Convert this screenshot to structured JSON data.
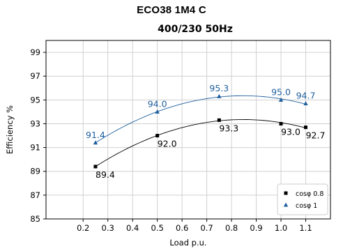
{
  "chart_data": {
    "type": "scatter",
    "title": "ECO38 1M4 C",
    "subtitle": "400/230 50Hz",
    "xlabel": "Load p.u.",
    "ylabel": "Efficiency %",
    "xlim": [
      0.05,
      1.2
    ],
    "ylim": [
      85,
      100
    ],
    "xticks": [
      0.2,
      0.3,
      0.4,
      0.5,
      0.6,
      0.7,
      0.8,
      0.9,
      1.0,
      1.1
    ],
    "xtick_labels": [
      "0.2",
      "0.3",
      "0.4",
      "0.5",
      "0.6",
      "0.7",
      "0.8",
      "0.9",
      "1.0",
      "1.1"
    ],
    "yticks": [
      85,
      87,
      89,
      91,
      93,
      95,
      97,
      99
    ],
    "ytick_labels": [
      "85",
      "87",
      "89",
      "91",
      "93",
      "95",
      "97",
      "99"
    ],
    "grid": true,
    "legend_position": "bottom-right",
    "series": [
      {
        "name": "cosφ 0.8",
        "marker": "square",
        "color": "#000000",
        "label_color": "#000000",
        "label_position": "below",
        "x": [
          0.25,
          0.5,
          0.75,
          1.0,
          1.1
        ],
        "y": [
          89.4,
          92.0,
          93.3,
          93.0,
          92.7
        ],
        "labels": [
          "89.4",
          "92.0",
          "93.3",
          "93.0",
          "92.7"
        ]
      },
      {
        "name": "cosφ 1",
        "marker": "triangle",
        "color": "#1f5f9e",
        "label_color": "#1f5f9e",
        "label_position": "above",
        "x": [
          0.25,
          0.5,
          0.75,
          1.0,
          1.1
        ],
        "y": [
          91.4,
          94.0,
          95.3,
          95.0,
          94.7
        ],
        "labels": [
          "91.4",
          "94.0",
          "95.3",
          "95.0",
          "94.7"
        ]
      }
    ]
  }
}
